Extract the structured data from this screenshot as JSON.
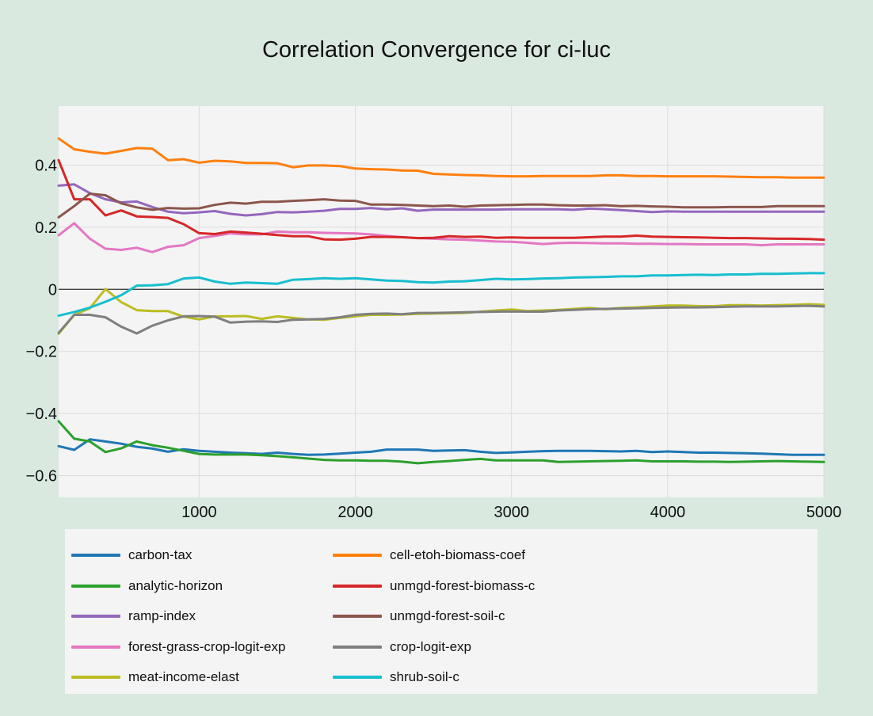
{
  "chart_data": {
    "type": "line",
    "title": "Correlation Convergence for ci-luc",
    "xlabel": "",
    "ylabel": "",
    "xlim": [
      100,
      5000
    ],
    "ylim": [
      -0.67,
      0.59
    ],
    "x_ticks": [
      1000,
      2000,
      3000,
      4000,
      5000
    ],
    "y_ticks": [
      0.4,
      0.2,
      0,
      -0.2,
      -0.4,
      -0.6
    ],
    "y_tick_labels": [
      "0.4",
      "0.2",
      "0",
      "−0.2",
      "−0.4",
      "−0.6"
    ],
    "grid": true,
    "legend_position": "bottom",
    "x": [
      100,
      200,
      300,
      400,
      500,
      600,
      700,
      800,
      900,
      1000,
      1100,
      1200,
      1300,
      1400,
      1500,
      1600,
      1700,
      1800,
      1900,
      2000,
      2100,
      2200,
      2300,
      2400,
      2500,
      2600,
      2700,
      2800,
      2900,
      3000,
      3100,
      3200,
      3300,
      3400,
      3500,
      3600,
      3700,
      3800,
      3900,
      4000,
      4100,
      4200,
      4300,
      4400,
      4500,
      4600,
      4700,
      4800,
      4900,
      5000
    ],
    "series": [
      {
        "name": "carbon-tax",
        "color": "#1f77b4",
        "values": [
          -0.505,
          -0.517,
          -0.483,
          -0.49,
          -0.497,
          -0.507,
          -0.513,
          -0.523,
          -0.515,
          -0.52,
          -0.523,
          -0.526,
          -0.528,
          -0.53,
          -0.526,
          -0.53,
          -0.533,
          -0.532,
          -0.529,
          -0.526,
          -0.523,
          -0.516,
          -0.516,
          -0.516,
          -0.52,
          -0.519,
          -0.518,
          -0.523,
          -0.527,
          -0.525,
          -0.523,
          -0.521,
          -0.52,
          -0.52,
          -0.52,
          -0.521,
          -0.522,
          -0.52,
          -0.524,
          -0.522,
          -0.524,
          -0.526,
          -0.526,
          -0.527,
          -0.528,
          -0.529,
          -0.531,
          -0.533,
          -0.533,
          -0.533
        ]
      },
      {
        "name": "analytic-horizon",
        "color": "#2ca02c",
        "values": [
          -0.425,
          -0.481,
          -0.49,
          -0.524,
          -0.512,
          -0.49,
          -0.502,
          -0.51,
          -0.52,
          -0.53,
          -0.532,
          -0.532,
          -0.532,
          -0.534,
          -0.537,
          -0.541,
          -0.545,
          -0.549,
          -0.551,
          -0.551,
          -0.552,
          -0.552,
          -0.555,
          -0.56,
          -0.556,
          -0.553,
          -0.549,
          -0.546,
          -0.551,
          -0.551,
          -0.551,
          -0.551,
          -0.556,
          -0.555,
          -0.554,
          -0.553,
          -0.552,
          -0.551,
          -0.554,
          -0.554,
          -0.554,
          -0.555,
          -0.555,
          -0.556,
          -0.555,
          -0.554,
          -0.553,
          -0.554,
          -0.555,
          -0.556
        ]
      },
      {
        "name": "ramp-index",
        "color": "#9467bd",
        "values": [
          0.334,
          0.338,
          0.31,
          0.29,
          0.28,
          0.283,
          0.265,
          0.25,
          0.245,
          0.248,
          0.252,
          0.243,
          0.238,
          0.242,
          0.249,
          0.248,
          0.25,
          0.253,
          0.259,
          0.259,
          0.262,
          0.258,
          0.261,
          0.253,
          0.257,
          0.257,
          0.257,
          0.257,
          0.257,
          0.258,
          0.258,
          0.258,
          0.258,
          0.256,
          0.26,
          0.258,
          0.255,
          0.252,
          0.249,
          0.251,
          0.25,
          0.25,
          0.25,
          0.25,
          0.25,
          0.25,
          0.25,
          0.25,
          0.25,
          0.25
        ]
      },
      {
        "name": "forest-grass-crop-logit-exp",
        "color": "#e377c2",
        "values": [
          0.174,
          0.213,
          0.163,
          0.131,
          0.127,
          0.134,
          0.12,
          0.137,
          0.142,
          0.165,
          0.172,
          0.18,
          0.177,
          0.177,
          0.186,
          0.184,
          0.184,
          0.182,
          0.181,
          0.18,
          0.177,
          0.172,
          0.168,
          0.165,
          0.163,
          0.161,
          0.16,
          0.157,
          0.154,
          0.153,
          0.15,
          0.146,
          0.149,
          0.15,
          0.149,
          0.148,
          0.148,
          0.147,
          0.147,
          0.146,
          0.146,
          0.145,
          0.145,
          0.145,
          0.145,
          0.142,
          0.145,
          0.145,
          0.145,
          0.145
        ]
      },
      {
        "name": "meat-income-elast",
        "color": "#bcbd22",
        "values": [
          -0.143,
          -0.082,
          -0.061,
          0.001,
          -0.041,
          -0.067,
          -0.07,
          -0.07,
          -0.088,
          -0.097,
          -0.087,
          -0.087,
          -0.086,
          -0.095,
          -0.087,
          -0.092,
          -0.097,
          -0.098,
          -0.092,
          -0.087,
          -0.082,
          -0.082,
          -0.081,
          -0.079,
          -0.078,
          -0.077,
          -0.076,
          -0.072,
          -0.068,
          -0.065,
          -0.07,
          -0.068,
          -0.066,
          -0.063,
          -0.06,
          -0.064,
          -0.06,
          -0.058,
          -0.055,
          -0.052,
          -0.052,
          -0.054,
          -0.054,
          -0.051,
          -0.051,
          -0.052,
          -0.051,
          -0.05,
          -0.048,
          -0.05
        ]
      },
      {
        "name": "cell-etoh-biomass-coef",
        "color": "#ff7f0e",
        "values": [
          0.486,
          0.451,
          0.443,
          0.437,
          0.446,
          0.455,
          0.453,
          0.416,
          0.419,
          0.408,
          0.414,
          0.412,
          0.407,
          0.407,
          0.406,
          0.393,
          0.399,
          0.399,
          0.397,
          0.389,
          0.387,
          0.386,
          0.383,
          0.382,
          0.372,
          0.37,
          0.368,
          0.367,
          0.365,
          0.364,
          0.364,
          0.365,
          0.365,
          0.365,
          0.365,
          0.367,
          0.367,
          0.365,
          0.365,
          0.364,
          0.364,
          0.364,
          0.364,
          0.363,
          0.362,
          0.361,
          0.361,
          0.36,
          0.36,
          0.36
        ]
      },
      {
        "name": "unmgd-forest-biomass-c",
        "color": "#d62728",
        "values": [
          0.416,
          0.29,
          0.29,
          0.238,
          0.254,
          0.235,
          0.233,
          0.23,
          0.21,
          0.181,
          0.178,
          0.186,
          0.183,
          0.179,
          0.175,
          0.171,
          0.171,
          0.161,
          0.16,
          0.163,
          0.169,
          0.169,
          0.168,
          0.165,
          0.166,
          0.171,
          0.169,
          0.17,
          0.166,
          0.167,
          0.166,
          0.166,
          0.166,
          0.166,
          0.168,
          0.17,
          0.17,
          0.173,
          0.17,
          0.169,
          0.168,
          0.167,
          0.166,
          0.165,
          0.165,
          0.164,
          0.163,
          0.163,
          0.162,
          0.16
        ]
      },
      {
        "name": "unmgd-forest-soil-c",
        "color": "#8c564b",
        "values": [
          0.232,
          0.268,
          0.308,
          0.303,
          0.277,
          0.264,
          0.256,
          0.262,
          0.26,
          0.261,
          0.272,
          0.279,
          0.276,
          0.282,
          0.282,
          0.285,
          0.287,
          0.29,
          0.286,
          0.285,
          0.273,
          0.273,
          0.272,
          0.27,
          0.268,
          0.27,
          0.266,
          0.27,
          0.271,
          0.272,
          0.273,
          0.273,
          0.271,
          0.27,
          0.27,
          0.271,
          0.268,
          0.269,
          0.267,
          0.266,
          0.264,
          0.264,
          0.264,
          0.265,
          0.265,
          0.265,
          0.268,
          0.268,
          0.268,
          0.268
        ]
      },
      {
        "name": "crop-logit-exp",
        "color": "#7f7f7f",
        "values": [
          -0.14,
          -0.082,
          -0.082,
          -0.09,
          -0.12,
          -0.142,
          -0.117,
          -0.1,
          -0.087,
          -0.086,
          -0.088,
          -0.107,
          -0.104,
          -0.103,
          -0.105,
          -0.098,
          -0.097,
          -0.095,
          -0.09,
          -0.082,
          -0.079,
          -0.078,
          -0.08,
          -0.076,
          -0.076,
          -0.075,
          -0.074,
          -0.073,
          -0.072,
          -0.071,
          -0.072,
          -0.072,
          -0.068,
          -0.066,
          -0.064,
          -0.063,
          -0.062,
          -0.061,
          -0.06,
          -0.059,
          -0.058,
          -0.058,
          -0.057,
          -0.056,
          -0.055,
          -0.055,
          -0.055,
          -0.054,
          -0.053,
          -0.055
        ]
      },
      {
        "name": "shrub-soil-c",
        "color": "#17becf",
        "values": [
          -0.085,
          -0.073,
          -0.059,
          -0.04,
          -0.019,
          0.012,
          0.013,
          0.017,
          0.035,
          0.038,
          0.025,
          0.018,
          0.022,
          0.02,
          0.018,
          0.031,
          0.033,
          0.036,
          0.034,
          0.036,
          0.032,
          0.028,
          0.027,
          0.023,
          0.022,
          0.025,
          0.026,
          0.03,
          0.034,
          0.032,
          0.033,
          0.035,
          0.036,
          0.038,
          0.039,
          0.04,
          0.042,
          0.042,
          0.045,
          0.045,
          0.046,
          0.047,
          0.046,
          0.048,
          0.048,
          0.05,
          0.05,
          0.051,
          0.052,
          0.052
        ]
      }
    ]
  }
}
